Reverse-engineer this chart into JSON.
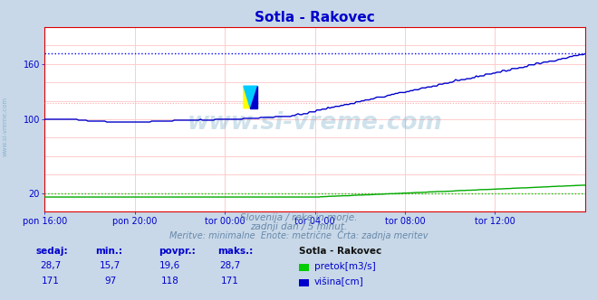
{
  "title": "Sotla - Rakovec",
  "title_color": "#0000cc",
  "bg_color": "#c8d8e8",
  "plot_bg_color": "#ffffff",
  "x_tick_labels": [
    "pon 16:00",
    "pon 20:00",
    "tor 00:00",
    "tor 04:00",
    "tor 08:00",
    "tor 12:00"
  ],
  "x_tick_positions": [
    0,
    48,
    96,
    144,
    192,
    240
  ],
  "total_points": 289,
  "ylim_min": 0,
  "ylim_max": 200,
  "y_ticks": [
    20,
    100,
    160
  ],
  "y_tick_labels": [
    "20",
    "100",
    "160"
  ],
  "line_blue_color": "#0000cc",
  "line_green_color": "#00aa00",
  "dotted_blue_color": "#0000ff",
  "dotted_green_color": "#00cc00",
  "grid_color": "#ffcccc",
  "axis_color": "#dd0000",
  "text_color": "#0000cc",
  "watermark_text": "www.si-vreme.com",
  "watermark_color": "#5599bb",
  "watermark_alpha": 0.28,
  "subtitle1": "Slovenija / reke in morje.",
  "subtitle2": "zadnji dan / 5 minut.",
  "subtitle3": "Meritve: minimalne  Enote: metrične  Črta: zadnja meritev",
  "footer_color": "#6688aa",
  "row1_values": [
    "28,7",
    "15,7",
    "19,6",
    "28,7"
  ],
  "row2_values": [
    "171",
    "97",
    "118",
    "171"
  ],
  "table_label": "Sotla - Rakovec",
  "legend_pretok": "pretok[m3/s]",
  "legend_visina": "višina[cm]",
  "legend_green": "#00cc00",
  "legend_blue": "#0000cc",
  "visina_max_hline": 171,
  "pretok_avg_hline": 19.6,
  "visina_avg_hline": 118
}
